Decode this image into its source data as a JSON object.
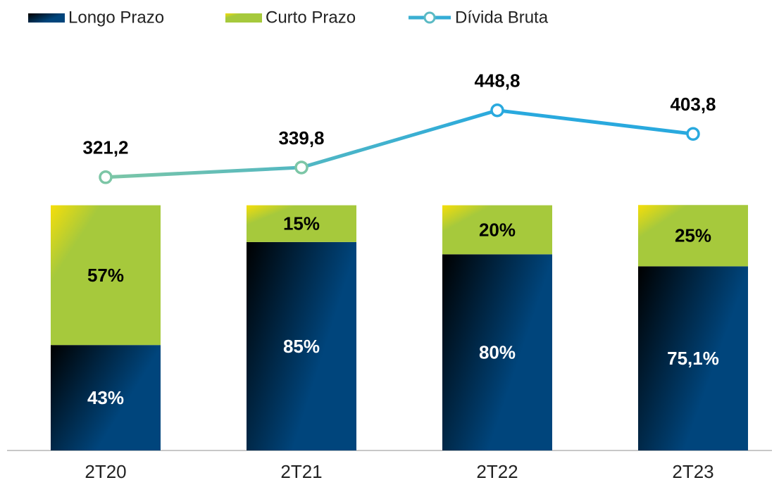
{
  "chart_data": {
    "type": "bar",
    "stacked": true,
    "categories": [
      "2T20",
      "2T21",
      "2T22",
      "2T23"
    ],
    "series": [
      {
        "name": "Longo Prazo",
        "color": "#00457c",
        "values": [
          43,
          85,
          80,
          75.1
        ],
        "value_labels": [
          "43%",
          "85%",
          "80%",
          "75,1%"
        ]
      },
      {
        "name": "Curto Prazo",
        "color": "#a6c93c",
        "values": [
          57,
          15,
          20,
          25
        ],
        "value_labels": [
          "57%",
          "15%",
          "20%",
          "25%"
        ]
      },
      {
        "name": "Dívida Bruta",
        "type": "line",
        "axis": "y2",
        "color": "#29a9de",
        "values": [
          321.2,
          339.8,
          448.8,
          403.8
        ],
        "value_labels": [
          "321,2",
          "339,8",
          "448,8",
          "403,8"
        ]
      }
    ],
    "ylim": [
      0,
      155
    ],
    "y2lim": [
      -200,
      525
    ],
    "legend": "top"
  }
}
